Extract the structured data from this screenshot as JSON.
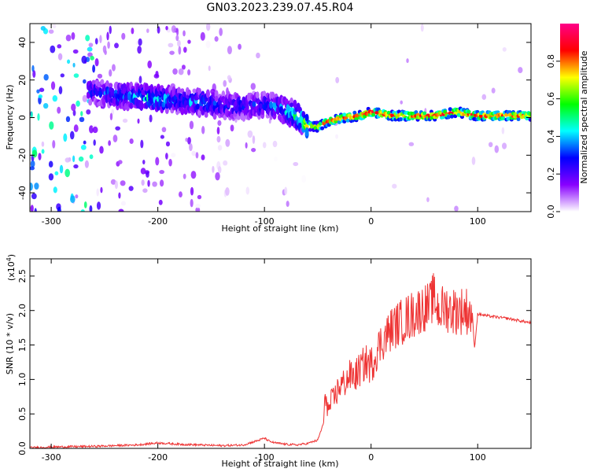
{
  "title": "GN03.2023.239.07.45.R04",
  "chart_data": [
    {
      "type": "heatmap",
      "xlabel": "Height of straight line (km)",
      "ylabel": "Frequency (Hz)",
      "xlim": [
        -320,
        150
      ],
      "ylim": [
        -50,
        50
      ],
      "x_ticks": [
        -300,
        -200,
        -100,
        0,
        100
      ],
      "x_tick_labels": [
        "-300",
        "-200",
        "-100",
        "0",
        "100"
      ],
      "y_ticks": [
        -40,
        -20,
        0,
        20,
        40
      ],
      "y_tick_labels": [
        "-40",
        "-20",
        "0",
        "20",
        "40"
      ],
      "colorbar": {
        "label": "Normalized spectral amplitude",
        "range": [
          0,
          1
        ],
        "ticks": [
          0,
          0.2,
          0.4,
          0.6,
          0.8
        ],
        "tick_labels": [
          "0.0",
          "0.2",
          "0.4",
          "0.6",
          "0.8"
        ],
        "colors": [
          "#ffffff",
          "#8800ff",
          "#0000ff",
          "#00ffff",
          "#00ff00",
          "#ffff00",
          "#ff0000",
          "#ff0088"
        ]
      },
      "ridge": {
        "x": [
          -265,
          -240,
          -220,
          -200,
          -180,
          -160,
          -140,
          -120,
          -100,
          -85,
          -70,
          -60,
          -50,
          -40,
          -25,
          -10,
          0,
          20,
          40,
          60,
          80,
          100,
          120,
          150
        ],
        "frequency": [
          14,
          12,
          11,
          10,
          9,
          8,
          6,
          6,
          7,
          5,
          1,
          -4,
          -5,
          -2,
          0,
          1,
          3,
          1,
          1,
          1,
          3,
          1,
          1,
          1
        ],
        "amplitude": [
          0.3,
          0.35,
          0.4,
          0.45,
          0.35,
          0.4,
          0.3,
          0.3,
          0.3,
          0.4,
          0.5,
          0.7,
          0.8,
          0.85,
          0.9,
          0.9,
          0.95,
          0.9,
          0.9,
          0.9,
          0.9,
          0.9,
          0.9,
          0.85
        ]
      }
    },
    {
      "type": "line",
      "xlabel": "Height of straight line (km)",
      "ylabel": "SNR (10 * v/v)",
      "scale_label": "(x10",
      "scale_exponent": "4",
      "scale_close": ")",
      "xlim": [
        -320,
        150
      ],
      "ylim": [
        0,
        2.75
      ],
      "x_ticks": [
        -300,
        -200,
        -100,
        0,
        100
      ],
      "x_tick_labels": [
        "-300",
        "-200",
        "-100",
        "0",
        "100"
      ],
      "y_ticks": [
        0,
        0.5,
        1.0,
        1.5,
        2.0,
        2.5
      ],
      "y_tick_labels": [
        "0.0",
        "0.5",
        "1.0",
        "1.5",
        "2.0",
        "2.5"
      ],
      "series": [
        {
          "color": "#ee3333",
          "x": [
            -320,
            -300,
            -260,
            -220,
            -200,
            -180,
            -160,
            -140,
            -120,
            -105,
            -100,
            -95,
            -90,
            -80,
            -70,
            -60,
            -50,
            -45,
            -42,
            -40,
            -38,
            -35,
            -30,
            -25,
            -20,
            -15,
            -10,
            -5,
            0,
            5,
            10,
            15,
            20,
            25,
            30,
            35,
            40,
            45,
            50,
            55,
            58,
            60,
            62,
            65,
            70,
            75,
            80,
            90,
            95,
            97,
            100,
            110,
            120,
            130,
            140,
            150
          ],
          "y": [
            0.01,
            0.02,
            0.03,
            0.05,
            0.08,
            0.06,
            0.05,
            0.04,
            0.05,
            0.12,
            0.15,
            0.1,
            0.08,
            0.06,
            0.05,
            0.07,
            0.12,
            0.35,
            0.8,
            0.5,
            0.65,
            0.7,
            0.9,
            0.95,
            1.05,
            1.05,
            1.15,
            1.25,
            1.2,
            1.4,
            1.55,
            1.65,
            1.75,
            1.8,
            1.85,
            1.9,
            1.95,
            2.0,
            2.05,
            2.05,
            2.2,
            2.15,
            2.05,
            2.0,
            2.05,
            2.0,
            2.0,
            2.0,
            1.95,
            1.45,
            1.95,
            1.92,
            1.9,
            1.88,
            1.85,
            1.82
          ]
        }
      ]
    }
  ]
}
